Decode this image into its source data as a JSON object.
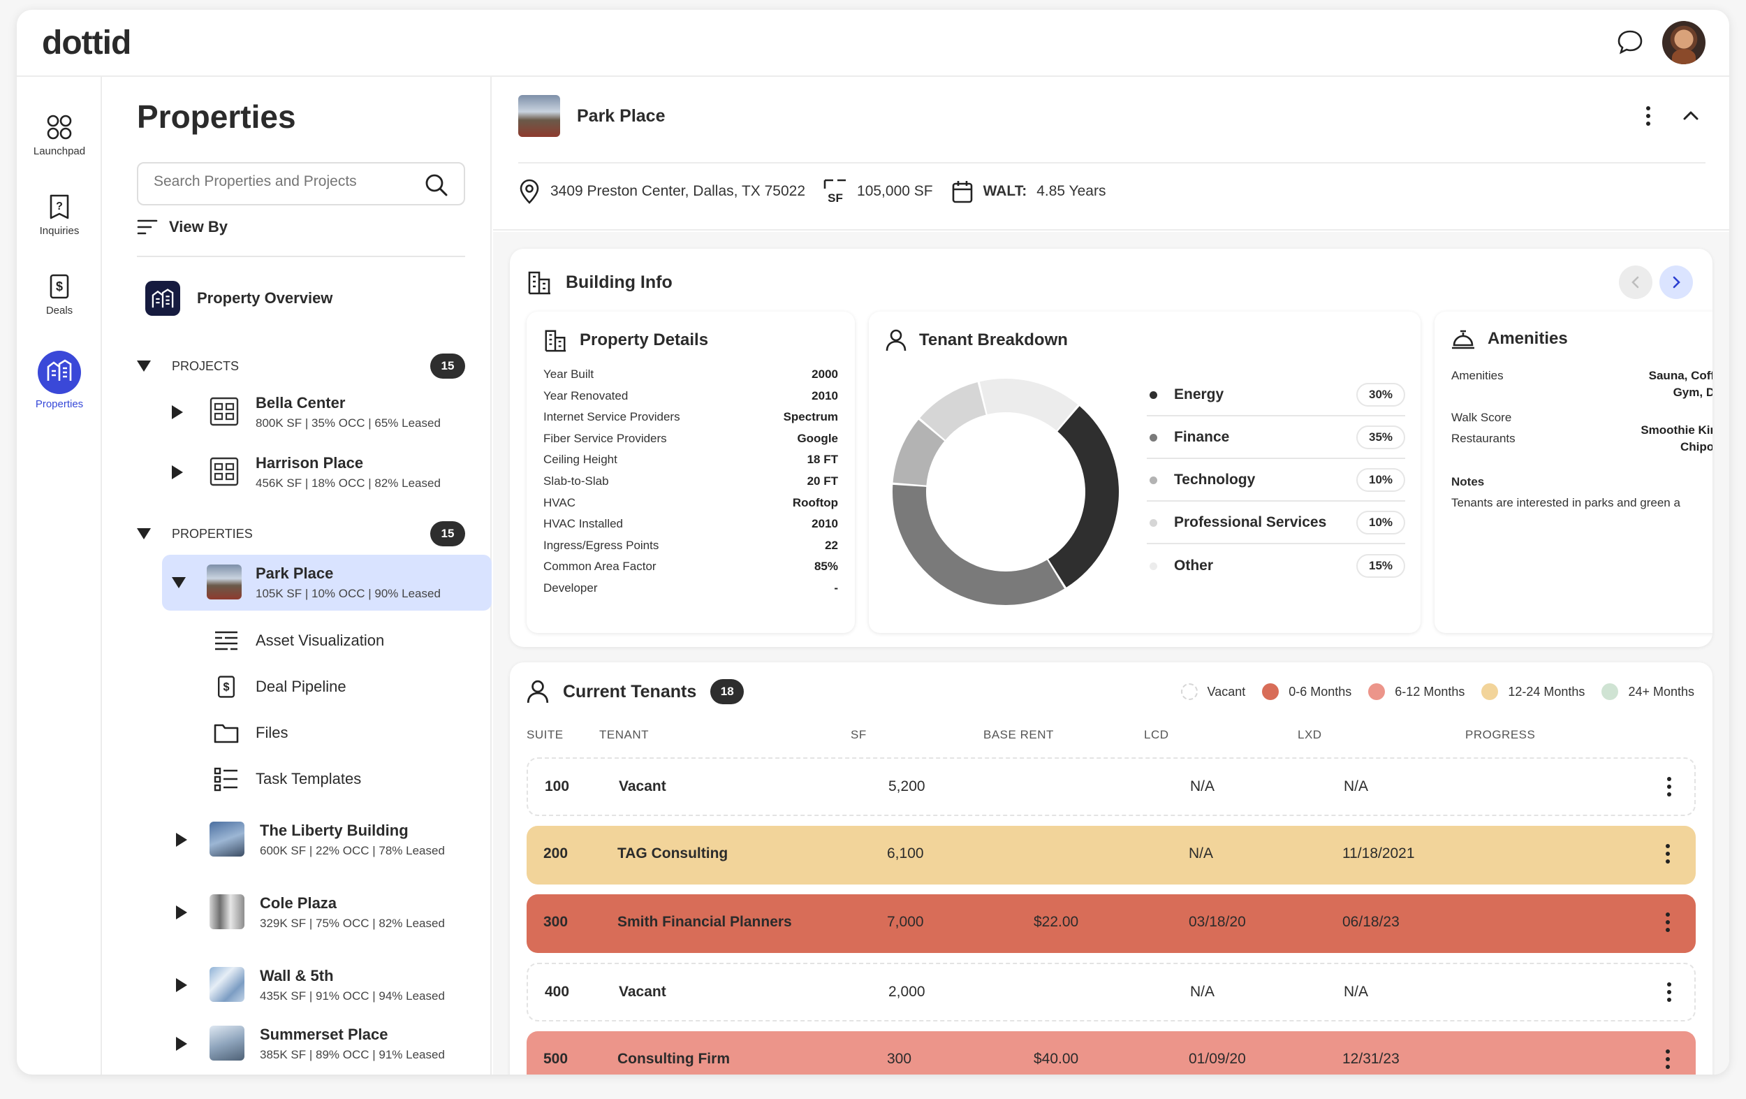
{
  "app": {
    "logo": "dottid"
  },
  "rail": {
    "items": [
      {
        "label": "Launchpad",
        "icon": "grid-icon"
      },
      {
        "label": "Inquiries",
        "icon": "question-doc-icon"
      },
      {
        "label": "Deals",
        "icon": "dollar-doc-icon"
      },
      {
        "label": "Properties",
        "icon": "buildings-icon",
        "active": true
      }
    ]
  },
  "sidebar": {
    "title": "Properties",
    "search_placeholder": "Search Properties and Projects",
    "view_by": "View By",
    "overview": "Property Overview",
    "projects": {
      "label": "PROJECTS",
      "count": "15",
      "items": [
        {
          "name": "Bella Center",
          "meta": "800K SF | 35% OCC | 65% Leased"
        },
        {
          "name": "Harrison Place",
          "meta": "456K SF | 18% OCC | 82% Leased"
        }
      ]
    },
    "properties": {
      "label": "PROPERTIES",
      "count": "15",
      "selected": {
        "name": "Park Place",
        "meta": "105K SF | 10% OCC | 90% Leased"
      },
      "sub_items": [
        "Asset Visualization",
        "Deal Pipeline",
        "Files",
        "Task Templates"
      ],
      "items": [
        {
          "name": "The Liberty Building",
          "meta": "600K SF | 22% OCC | 78% Leased"
        },
        {
          "name": "Cole Plaza",
          "meta": "329K SF | 75% OCC | 82% Leased"
        },
        {
          "name": "Wall & 5th",
          "meta": "435K SF | 91% OCC | 94% Leased"
        },
        {
          "name": "Summerset Place",
          "meta": "385K SF | 89% OCC | 91% Leased"
        }
      ]
    }
  },
  "property": {
    "name": "Park Place",
    "address": "3409 Preston Center, Dallas, TX 75022",
    "sf": "105,000 SF",
    "walt_label": "WALT:",
    "walt_value": "4.85 Years"
  },
  "building_info": {
    "title": "Building Info",
    "details": {
      "title": "Property Details",
      "rows": [
        {
          "k": "Year Built",
          "v": "2000"
        },
        {
          "k": "Year Renovated",
          "v": "2010"
        },
        {
          "k": "Internet Service Providers",
          "v": "Spectrum"
        },
        {
          "k": "Fiber Service Providers",
          "v": "Google"
        },
        {
          "k": "Ceiling Height",
          "v": "18 FT"
        },
        {
          "k": "Slab-to-Slab",
          "v": "20 FT"
        },
        {
          "k": "HVAC",
          "v": "Rooftop"
        },
        {
          "k": "HVAC Installed",
          "v": "2010"
        },
        {
          "k": "Ingress/Egress Points",
          "v": "22"
        },
        {
          "k": "Common Area Factor",
          "v": "85%"
        },
        {
          "k": "Developer",
          "v": "-"
        }
      ]
    },
    "tenant_breakdown": {
      "title": "Tenant Breakdown",
      "segments": [
        {
          "label": "Energy",
          "pct": "30%",
          "value": 30,
          "color": "#2f2f2f"
        },
        {
          "label": "Finance",
          "pct": "35%",
          "value": 35,
          "color": "#7a7a7a"
        },
        {
          "label": "Technology",
          "pct": "10%",
          "value": 10,
          "color": "#b3b3b3"
        },
        {
          "label": "Professional Services",
          "pct": "10%",
          "value": 10,
          "color": "#d6d6d6"
        },
        {
          "label": "Other",
          "pct": "15%",
          "value": 15,
          "color": "#ececec"
        }
      ]
    },
    "amenities": {
      "title": "Amenities",
      "rows": [
        {
          "k": "Amenities",
          "v1": "Sauna, Coffee",
          "v2": "Gym, Deli"
        },
        {
          "k": "Walk Score",
          "v1": "",
          "v2": ""
        },
        {
          "k": "Restaurants",
          "v1": "Smoothie King,",
          "v2": "Chipotle"
        }
      ],
      "notes_label": "Notes",
      "notes": "Tenants are interested in parks and green a"
    }
  },
  "tenants": {
    "title": "Current Tenants",
    "count": "18",
    "legend": [
      {
        "label": "Vacant",
        "color": "#ffffff"
      },
      {
        "label": "0-6 Months",
        "color": "#d86d58"
      },
      {
        "label": "6-12 Months",
        "color": "#ec958a"
      },
      {
        "label": "12-24 Months",
        "color": "#f2d49a"
      },
      {
        "label": "24+ Months",
        "color": "#cfe3d3"
      }
    ],
    "columns": [
      "SUITE",
      "TENANT",
      "SF",
      "BASE RENT",
      "LCD",
      "LXD",
      "PROGRESS"
    ],
    "rows": [
      {
        "suite": "100",
        "tenant": "Vacant",
        "sf": "5,200",
        "rent": "",
        "lcd": "N/A",
        "lxd": "N/A",
        "color": ""
      },
      {
        "suite": "200",
        "tenant": "TAG Consulting",
        "sf": "6,100",
        "rent": "",
        "lcd": "N/A",
        "lxd": "11/18/2021",
        "color": "#f2d49a"
      },
      {
        "suite": "300",
        "tenant": "Smith Financial Planners",
        "sf": "7,000",
        "rent": "$22.00",
        "lcd": "03/18/20",
        "lxd": "06/18/23",
        "color": "#d86d58"
      },
      {
        "suite": "400",
        "tenant": "Vacant",
        "sf": "2,000",
        "rent": "",
        "lcd": "N/A",
        "lxd": "N/A",
        "color": ""
      },
      {
        "suite": "500",
        "tenant": "Consulting Firm",
        "sf": "300",
        "rent": "$40.00",
        "lcd": "01/09/20",
        "lxd": "12/31/23",
        "color": "#ec958a"
      }
    ]
  }
}
